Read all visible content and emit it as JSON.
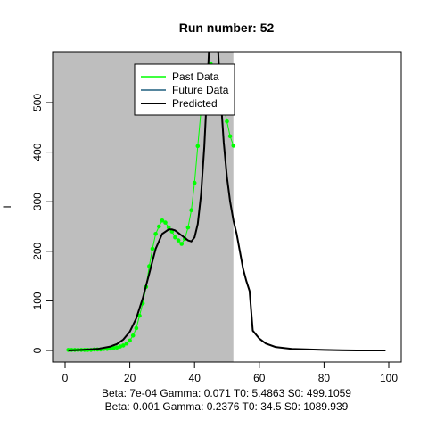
{
  "chart_data": {
    "type": "line",
    "title": "Run number:  52",
    "xlabel": "",
    "ylabel": "I",
    "xlim": [
      0,
      100
    ],
    "ylim": [
      0,
      600
    ],
    "x_ticks": [
      0,
      20,
      40,
      60,
      80,
      100
    ],
    "y_ticks": [
      0,
      100,
      200,
      300,
      400,
      500
    ],
    "shaded_region": {
      "x_start": -4,
      "x_end": 52,
      "color": "#bebebe"
    },
    "legend": {
      "position": "top-center",
      "entries": [
        {
          "label": "Past Data",
          "color": "#00ff00"
        },
        {
          "label": "Future Data",
          "color": "#1f5f7f"
        },
        {
          "label": "Predicted",
          "color": "#000000"
        }
      ]
    },
    "past_data": {
      "x": [
        1,
        2,
        3,
        4,
        5,
        6,
        7,
        8,
        9,
        10,
        11,
        12,
        13,
        14,
        15,
        16,
        17,
        18,
        19,
        20,
        21,
        22,
        23,
        24,
        25,
        26,
        27,
        28,
        29,
        30,
        31,
        32,
        33,
        34,
        35,
        36,
        37,
        38,
        39,
        40,
        41,
        42,
        43,
        44,
        45,
        46,
        47,
        48,
        49,
        50,
        51,
        52
      ],
      "y": [
        1,
        1,
        1,
        1,
        1,
        1,
        1,
        1,
        2,
        2,
        2,
        3,
        3,
        4,
        5,
        6,
        8,
        10,
        14,
        20,
        30,
        45,
        70,
        95,
        128,
        170,
        205,
        235,
        250,
        262,
        258,
        248,
        240,
        228,
        222,
        215,
        225,
        248,
        283,
        338,
        412,
        485,
        548,
        572,
        578,
        565,
        542,
        522,
        492,
        462,
        432,
        413
      ]
    },
    "predicted": {
      "x": [
        1,
        5,
        10,
        14,
        16,
        18,
        20,
        22,
        24,
        26,
        28,
        30,
        32,
        33,
        34,
        36,
        38,
        39,
        40,
        41,
        42,
        43,
        44,
        45,
        46,
        47,
        48,
        49,
        50,
        51,
        52,
        53,
        54,
        55,
        56,
        57,
        58,
        60,
        62,
        65,
        70,
        80,
        90,
        99
      ],
      "y": [
        0,
        1,
        3,
        8,
        13,
        22,
        38,
        65,
        105,
        155,
        205,
        235,
        244,
        244,
        242,
        232,
        222,
        220,
        228,
        255,
        315,
        410,
        540,
        680,
        720,
        640,
        520,
        420,
        350,
        300,
        262,
        235,
        200,
        165,
        140,
        120,
        40,
        24,
        14,
        7,
        3,
        1,
        0,
        0
      ]
    },
    "footer_lines": [
      "Beta:  7e-04 Gamma:  0.071 T0:  5.4863 S0:  499.1059",
      "Beta:  0.001 Gamma:  0.2376 T0:  34.5 S0:  1089.939"
    ]
  }
}
